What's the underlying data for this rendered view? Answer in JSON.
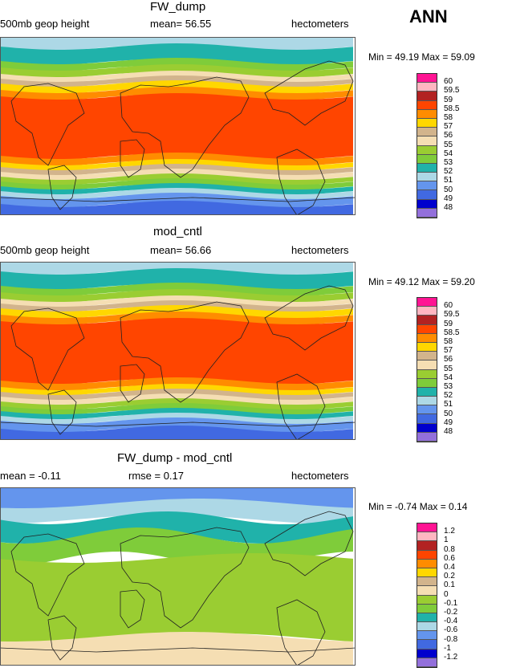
{
  "season": "ANN",
  "panels": [
    {
      "id": "fw",
      "title": "FW_dump",
      "left_label": "500mb geop height",
      "mean_text": "mean=  56.55",
      "units": "hectometers",
      "min_max": "Min =   49.19  Max =  59.09",
      "legend": {
        "labels": [
          "60",
          "59.5",
          "59",
          "58.5",
          "58",
          "57",
          "56",
          "55",
          "54",
          "53",
          "52",
          "51",
          "50",
          "49",
          "48"
        ],
        "colors": [
          "#ff1493",
          "#ffb6c1",
          "#b22222",
          "#ff4500",
          "#ff8c00",
          "#ffd700",
          "#d2b48c",
          "#f5deb3",
          "#9acd32",
          "#7fcc3a",
          "#20b2aa",
          "#add8e6",
          "#6495ed",
          "#4169e1",
          "#0000cd",
          "#9370db"
        ]
      }
    },
    {
      "id": "cntl",
      "title": "mod_cntl",
      "left_label": "500mb geop height",
      "mean_text": "mean=  56.66",
      "units": "hectometers",
      "min_max": "Min =   49.12  Max =  59.20",
      "legend": {
        "labels": [
          "60",
          "59.5",
          "59",
          "58.5",
          "58",
          "57",
          "56",
          "55",
          "54",
          "53",
          "52",
          "51",
          "50",
          "49",
          "48"
        ],
        "colors": [
          "#ff1493",
          "#ffb6c1",
          "#b22222",
          "#ff4500",
          "#ff8c00",
          "#ffd700",
          "#d2b48c",
          "#f5deb3",
          "#9acd32",
          "#7fcc3a",
          "#20b2aa",
          "#add8e6",
          "#6495ed",
          "#4169e1",
          "#0000cd",
          "#9370db"
        ]
      }
    },
    {
      "id": "diff",
      "title": "FW_dump - mod_cntl",
      "left_label": "mean =   -0.11",
      "mean_text": "rmse =    0.17",
      "units": "hectometers",
      "min_max": "Min =   -0.74  Max =    0.14",
      "legend": {
        "labels": [
          "1.2",
          "1",
          "0.8",
          "0.6",
          "0.4",
          "0.2",
          "0.1",
          "0",
          "-0.1",
          "-0.2",
          "-0.4",
          "-0.6",
          "-0.8",
          "-1",
          "-1.2"
        ],
        "colors": [
          "#ff1493",
          "#ffb6c1",
          "#b22222",
          "#ff4500",
          "#ff8c00",
          "#ffd700",
          "#d2b48c",
          "#f5deb3",
          "#9acd32",
          "#7fcc3a",
          "#20b2aa",
          "#add8e6",
          "#6495ed",
          "#4169e1",
          "#0000cd",
          "#9370db"
        ]
      }
    }
  ]
}
